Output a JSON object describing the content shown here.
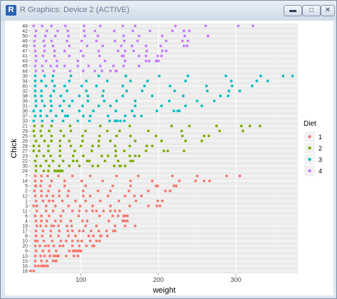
{
  "window": {
    "title": "R Graphics: Device 2 (ACTIVE)",
    "app_icon": "R",
    "controls": [
      "minimize-icon",
      "maximize-icon",
      "close-icon"
    ]
  },
  "chart_data": {
    "type": "scatter",
    "xlabel": "weight",
    "ylabel": "Chick",
    "x_ticks": [
      100,
      200,
      300
    ],
    "xlim": [
      35,
      380
    ],
    "grid": true,
    "legend": {
      "title": "Diet",
      "position": "right",
      "entries": [
        "1",
        "2",
        "3",
        "4"
      ]
    },
    "colors": {
      "1": "#F8766D",
      "2": "#7CAE00",
      "3": "#00BFC4",
      "4": "#C77CFF"
    },
    "categories": [
      "18",
      "16",
      "15",
      "13",
      "9",
      "20",
      "10",
      "8",
      "17",
      "19",
      "4",
      "6",
      "11",
      "3",
      "1",
      "12",
      "2",
      "5",
      "14",
      "7",
      "24",
      "30",
      "22",
      "23",
      "27",
      "28",
      "26",
      "25",
      "29",
      "21",
      "33",
      "37",
      "36",
      "31",
      "39",
      "38",
      "32",
      "40",
      "34",
      "35",
      "44",
      "45",
      "43",
      "41",
      "47",
      "49",
      "46",
      "50",
      "42",
      "48"
    ],
    "series": [
      {
        "name": "1",
        "points": [
          [
            "18",
            [
              39,
              35
            ]
          ],
          [
            "16",
            [
              41,
              45,
              49,
              51,
              57,
              51,
              54
            ]
          ],
          [
            "15",
            [
              41,
              49,
              56,
              64,
              68,
              68,
              67,
              68
            ]
          ],
          [
            "13",
            [
              41,
              48,
              53,
              60,
              65,
              67,
              71,
              70,
              71,
              81,
              91,
              96
            ]
          ],
          [
            "9",
            [
              42,
              51,
              59,
              68,
              85,
              96,
              90,
              92,
              93,
              100,
              100,
              98
            ]
          ],
          [
            "20",
            [
              41,
              47,
              54,
              58,
              65,
              73,
              77,
              89,
              98,
              107,
              115,
              117
            ]
          ],
          [
            "10",
            [
              41,
              44,
              52,
              63,
              74,
              81,
              89,
              96,
              101,
              112,
              120,
              124
            ]
          ],
          [
            "8",
            [
              42,
              50,
              61,
              71,
              84,
              93,
              110,
              116,
              126,
              134,
              125
            ]
          ],
          [
            "17",
            [
              42,
              51,
              61,
              72,
              83,
              89,
              98,
              103,
              113,
              123,
              133,
              142,
              144
            ]
          ],
          [
            "19",
            [
              43,
              48,
              55,
              62,
              65,
              71,
              82,
              88,
              106,
              120,
              144,
              157,
              170
            ]
          ],
          [
            "4",
            [
              42,
              49,
              56,
              67,
              74,
              87,
              102,
              108,
              136,
              154,
              160,
              157,
              156
            ]
          ],
          [
            "6",
            [
              41,
              49,
              59,
              74,
              97,
              124,
              141,
              148,
              155,
              160,
              160,
              157
            ]
          ],
          [
            "11",
            [
              43,
              55,
              64,
              77,
              89,
              98,
              107,
              115,
              120,
              129,
              138,
              144,
              150
            ]
          ],
          [
            "3",
            [
              43,
              39,
              55,
              67,
              84,
              99,
              115,
              138,
              163,
              187,
              198,
              202
            ]
          ],
          [
            "1",
            [
              42,
              51,
              59,
              64,
              76,
              93,
              106,
              125,
              149,
              171,
              199,
              205
            ]
          ],
          [
            "12",
            [
              41,
              49,
              56,
              64,
              72,
              83,
              103,
              112,
              135,
              157,
              169,
              178
            ]
          ],
          [
            "2",
            [
              40,
              49,
              58,
              72,
              84,
              103,
              122,
              138,
              162,
              187,
              209,
              215
            ]
          ],
          [
            "5",
            [
              41,
              42,
              48,
              60,
              79,
              106,
              141,
              164,
              197,
              199,
              220,
              223
            ]
          ],
          [
            "14",
            [
              41,
              49,
              62,
              79,
              101,
              128,
              164,
              192,
              227,
              248,
              259,
              266
            ]
          ],
          [
            "7",
            [
              41,
              49,
              57,
              71,
              89,
              112,
              146,
              174,
              218,
              250,
              288,
              305
            ]
          ]
        ]
      },
      {
        "name": "2",
        "points": [
          [
            "24",
            [
              42,
              52,
              58,
              74,
              66,
              68,
              70,
              71,
              72,
              72,
              76,
              74
            ]
          ],
          [
            "30",
            [
              42,
              48,
              59,
              72,
              85,
              98,
              115,
              122,
              143,
              151,
              157,
              150
            ]
          ],
          [
            "22",
            [
              41,
              55,
              64,
              77,
              90,
              95,
              108,
              111,
              131,
              148,
              164,
              167
            ]
          ],
          [
            "23",
            [
              43,
              52,
              61,
              73,
              90,
              103,
              127,
              135,
              145,
              163,
              170,
              175
            ]
          ],
          [
            "27",
            [
              39,
              46,
              58,
              73,
              92,
              114,
              145,
              156,
              184,
              207,
              212,
              233
            ]
          ],
          [
            "28",
            [
              39,
              46,
              58,
              73,
              87,
              100,
              115,
              123,
              144,
              163,
              185,
              192
            ]
          ],
          [
            "26",
            [
              42,
              53,
              62,
              73,
              85,
              102,
              123,
              138,
              170,
              204,
              235,
              256
            ]
          ],
          [
            "25",
            [
              40,
              49,
              62,
              78,
              102,
              124,
              146,
              164,
              197,
              231,
              259,
              265
            ]
          ],
          [
            "29",
            [
              39,
              48,
              59,
              74,
              87,
              106,
              134,
              150,
              187,
              230,
              279,
              309
            ]
          ],
          [
            "21",
            [
              40,
              50,
              62,
              86,
              125,
              163,
              217,
              240,
              275,
              307,
              318,
              331
            ]
          ]
        ]
      },
      {
        "name": "3",
        "points": [
          [
            "33",
            [
              39,
              50,
              63,
              77,
              96,
              111,
              137,
              144,
              151,
              146,
              156,
              147
            ]
          ],
          [
            "37",
            [
              41,
              48,
              56,
              68,
              80,
              83,
              103,
              112,
              135,
              157,
              169,
              178
            ]
          ],
          [
            "36",
            [
              39,
              48,
              61,
              76,
              98,
              116,
              145,
              166,
              198,
              227,
              225,
              220
            ]
          ],
          [
            "31",
            [
              42,
              53,
              62,
              73,
              85,
              102,
              123,
              138,
              170,
              204,
              235,
              256
            ]
          ],
          [
            "39",
            [
              42,
              50,
              61,
              78,
              89,
              109,
              130,
              146,
              170,
              214,
              250,
              272
            ]
          ],
          [
            "38",
            [
              41,
              49,
              61,
              74,
              98,
              109,
              128,
              154,
              192,
              232,
              280,
              290
            ]
          ],
          [
            "32",
            [
              41,
              49,
              65,
              82,
              107,
              129,
              159,
              179,
              221,
              263,
              291,
              305
            ]
          ],
          [
            "40",
            [
              41,
              55,
              66,
              79,
              101,
              120,
              154,
              182,
              215,
              262,
              295,
              321
            ]
          ],
          [
            "34",
            [
              41,
              49,
              63,
              85,
              107,
              134,
              164,
              186,
              235,
              294,
              327,
              341
            ]
          ],
          [
            "35",
            [
              41,
              53,
              64,
              87,
              123,
              158,
              201,
              238,
              287,
              332,
              361,
              373
            ]
          ]
        ]
      },
      {
        "name": "4",
        "points": [
          [
            "44",
            [
              42,
              51,
              65,
              86,
              103,
              118,
              127,
              138,
              145,
              146
            ]
          ],
          [
            "45",
            [
              41,
              50,
              61,
              69,
              79,
              96,
              110,
              125,
              142,
              155,
              175,
              175
            ]
          ],
          [
            "43",
            [
              42,
              55,
              69,
              96,
              131,
              157,
              184,
              188,
              197,
              198,
              199,
              200
            ]
          ],
          [
            "41",
            [
              42,
              51,
              66,
              85,
              103,
              124,
              155,
              153,
              175,
              184,
              199,
              204
            ]
          ],
          [
            "47",
            [
              41,
              53,
              66,
              79,
              100,
              123,
              148,
              157,
              168,
              185,
              210,
              205
            ]
          ],
          [
            "49",
            [
              40,
              53,
              64,
              85,
              108,
              128,
              152,
              166,
              184,
              203,
              233,
              237
            ]
          ],
          [
            "46",
            [
              40,
              52,
              62,
              82,
              101,
              120,
              144,
              156,
              173,
              210,
              231,
              238
            ]
          ],
          [
            "50",
            [
              41,
              54,
              67,
              84,
              105,
              122,
              155,
              175,
              205,
              234,
              264,
              264
            ]
          ],
          [
            "42",
            [
              42,
              56,
              70,
              83,
              104,
              118,
              143,
              167,
              189,
              218,
              233,
              240
            ]
          ],
          [
            "48",
            [
              39,
              50,
              62,
              80,
              104,
              125,
              154,
              170,
              222,
              261,
              303,
              322
            ]
          ]
        ]
      }
    ]
  }
}
